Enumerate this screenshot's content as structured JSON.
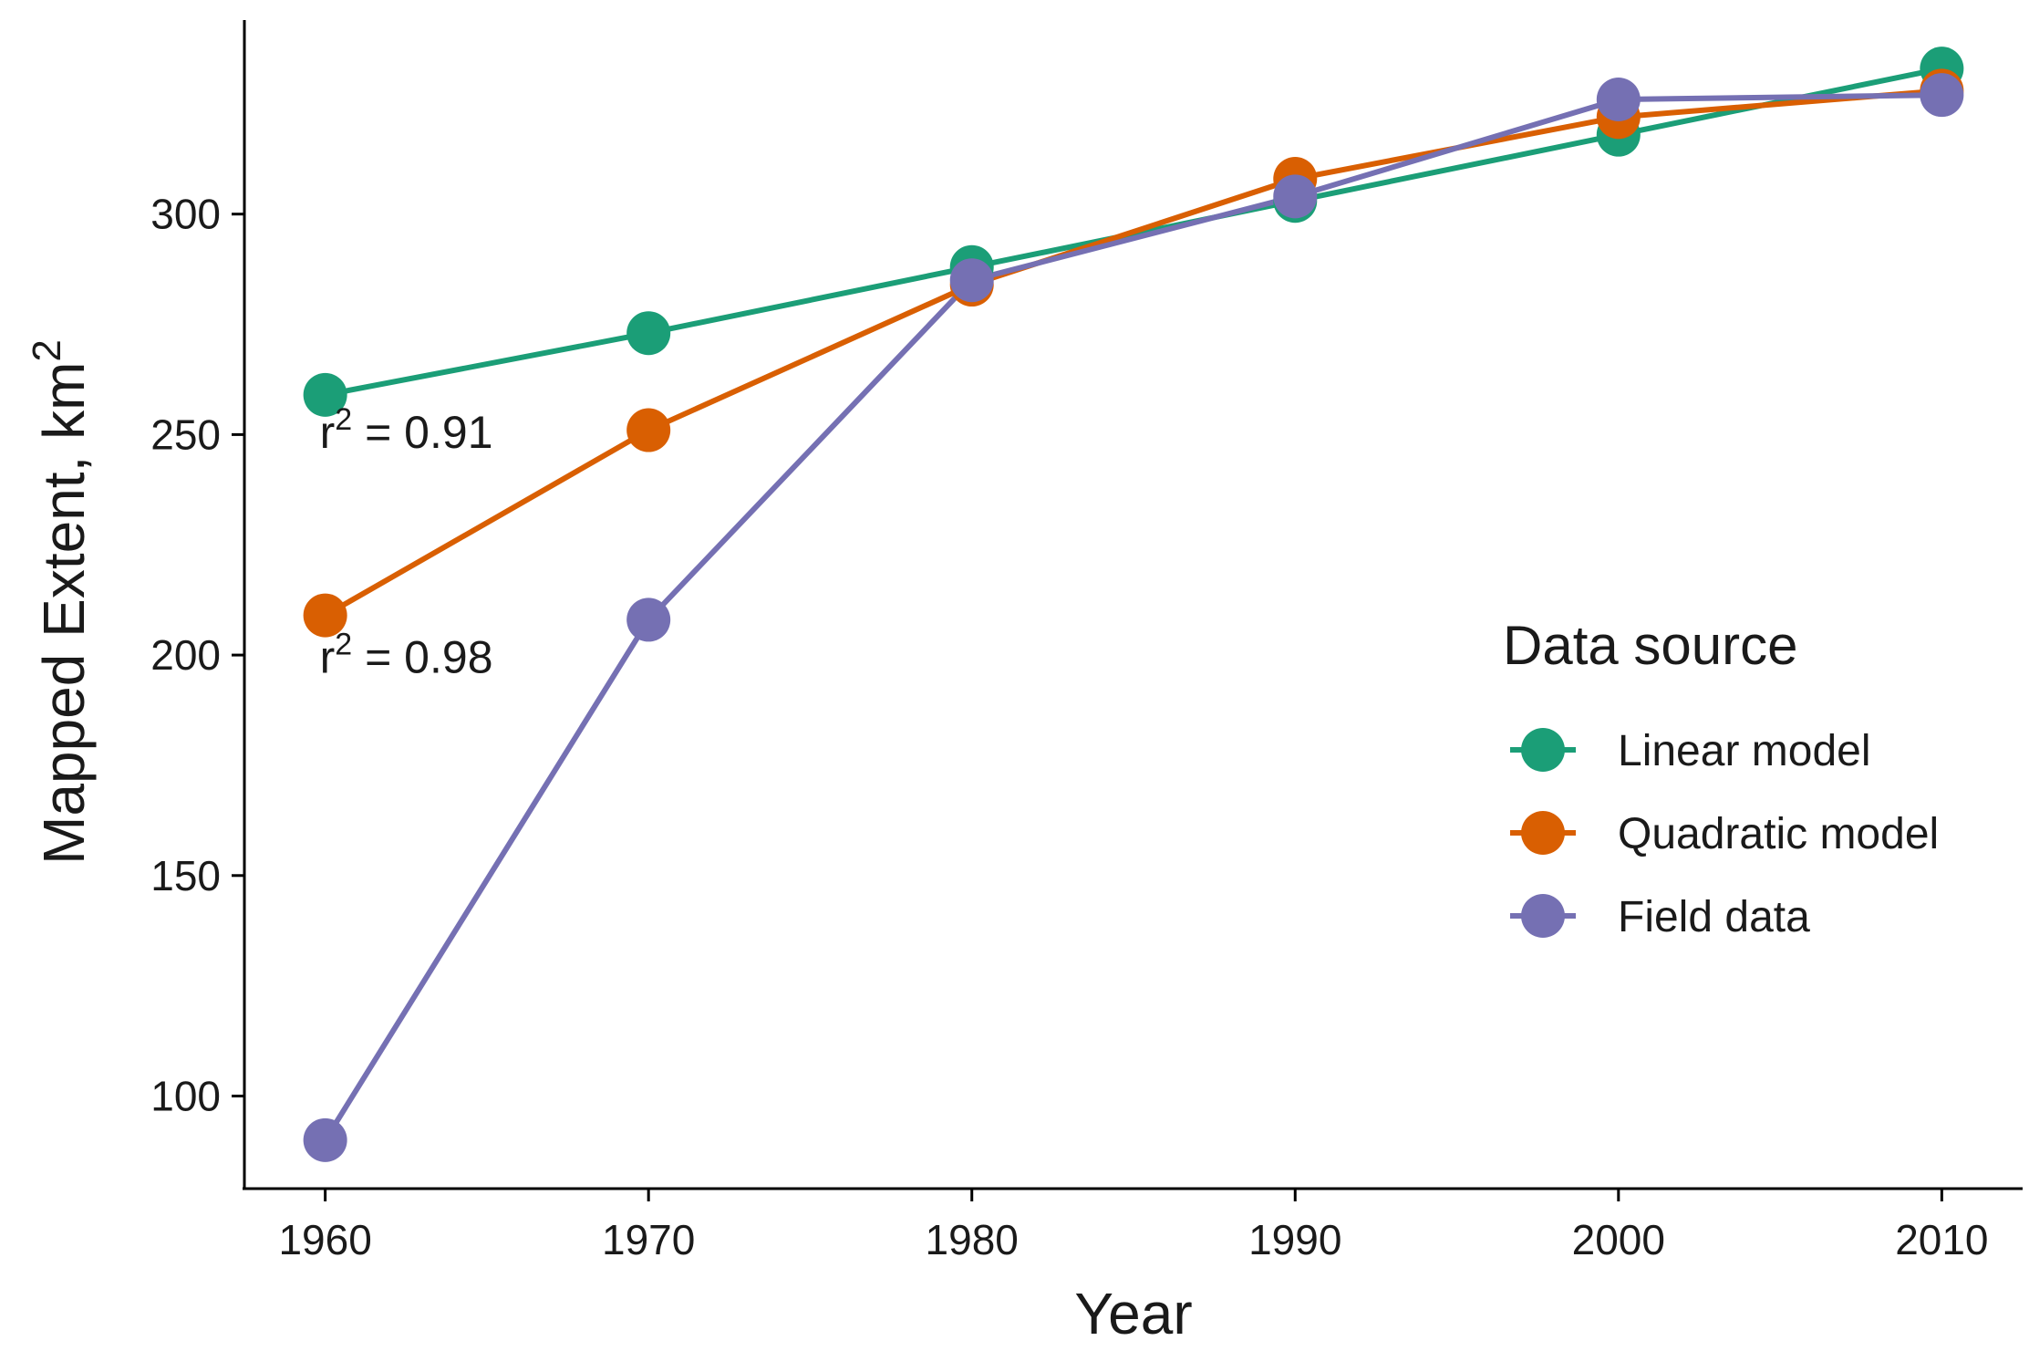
{
  "chart_data": {
    "type": "line",
    "title": "",
    "xlabel": "Year",
    "ylabel": "Mapped Extent,  km",
    "ylabel_superscript": "2",
    "x": [
      1960,
      1970,
      1980,
      1990,
      2000,
      2010
    ],
    "x_ticks": [
      "1960",
      "1970",
      "1980",
      "1990",
      "2000",
      "2010"
    ],
    "y_ticks": [
      "100",
      "150",
      "200",
      "250",
      "300"
    ],
    "xlim": [
      1957.5,
      2012.5
    ],
    "ylim": [
      79,
      344
    ],
    "grid": false,
    "legend": {
      "title": "Data source",
      "position": "right"
    },
    "series": [
      {
        "name": "Linear model",
        "color": "#1b9e77",
        "values": [
          259,
          273,
          288,
          303,
          318,
          333
        ]
      },
      {
        "name": "Quadratic model",
        "color": "#d95f02",
        "values": [
          209,
          251,
          284,
          308,
          322,
          328
        ]
      },
      {
        "name": "Field data",
        "color": "#7570b3",
        "values": [
          90,
          208,
          285,
          304,
          326,
          327
        ]
      }
    ],
    "annotations": [
      {
        "base": "r",
        "sup": "2",
        "text": " = 0.91",
        "x": 1960,
        "y": 247
      },
      {
        "base": "r",
        "sup": "2",
        "text": " = 0.98",
        "x": 1960,
        "y": 196
      }
    ]
  }
}
